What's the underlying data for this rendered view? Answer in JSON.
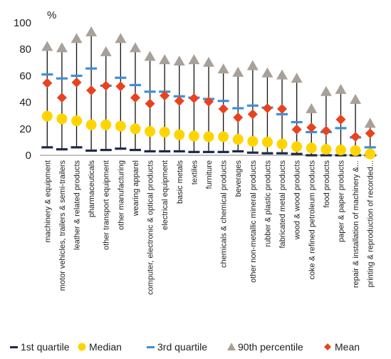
{
  "chart_data": {
    "type": "scatter",
    "unit_label": "%",
    "ylim": [
      0,
      100
    ],
    "yticks": [
      0,
      20,
      40,
      60,
      80,
      100
    ],
    "grid": false,
    "legend_position": "bottom",
    "categories": [
      "machinery & equipment",
      "motor vehicles, trailers & semi-trailers",
      "leather & related products",
      "pharmaceuticals",
      "other transport equipment",
      "other manufacturing",
      "wearing apparel",
      "computer, electronic & optical products",
      "electrical equipment",
      "basic metals",
      "textiles",
      "furniture",
      "chemicals & chemical products",
      "beverages",
      "other non-metallic mineral products",
      "rubber & plastic products",
      "fabricated metal products",
      "wood & wood products",
      "coke & refined petroleum products",
      "food products",
      "paper & paper products",
      "repair & installation of machinery &...",
      "printing & reproduction of recorded..."
    ],
    "series": [
      {
        "name": "1st quartile",
        "marker": "dash",
        "color": "#1f2a44",
        "values": [
          6,
          4.5,
          6,
          3.5,
          4,
          5,
          4,
          3,
          3,
          3,
          2.5,
          2.5,
          2.5,
          3,
          2,
          1.5,
          1.5,
          1,
          0,
          0,
          0,
          0,
          0
        ]
      },
      {
        "name": "Median",
        "marker": "circle",
        "color": "#ffd400",
        "values": [
          29.5,
          27.5,
          26,
          23,
          23,
          22,
          20,
          18,
          17.5,
          15.5,
          14.5,
          14,
          14,
          12,
          10.5,
          10,
          8.5,
          6.5,
          5.5,
          4.5,
          4,
          3.5,
          1
        ]
      },
      {
        "name": "3rd quartile",
        "marker": "dash",
        "color": "#3d8fd8",
        "values": [
          61,
          58,
          60,
          65.5,
          52.5,
          58.5,
          53,
          48,
          48,
          44.5,
          43.5,
          42.5,
          41,
          35.5,
          37.5,
          36,
          31,
          25,
          17.5,
          17.5,
          20.5,
          13.5,
          6
        ]
      },
      {
        "name": "90th percentile",
        "marker": "triangle",
        "color": "#a8a19a",
        "values": [
          82,
          81,
          88,
          93,
          78,
          88,
          81,
          74.5,
          72,
          71,
          72,
          70,
          65,
          62.5,
          67.5,
          62,
          60.5,
          58,
          35,
          48,
          49.5,
          42,
          24
        ]
      },
      {
        "name": "Mean",
        "marker": "diamond",
        "color": "#e8431f",
        "values": [
          54.5,
          43.5,
          55,
          49,
          52.5,
          52,
          43.5,
          39,
          45,
          41,
          43,
          40.5,
          35,
          28.5,
          31,
          35.5,
          35,
          19.5,
          21,
          18.5,
          27,
          14,
          16.5
        ]
      }
    ]
  }
}
